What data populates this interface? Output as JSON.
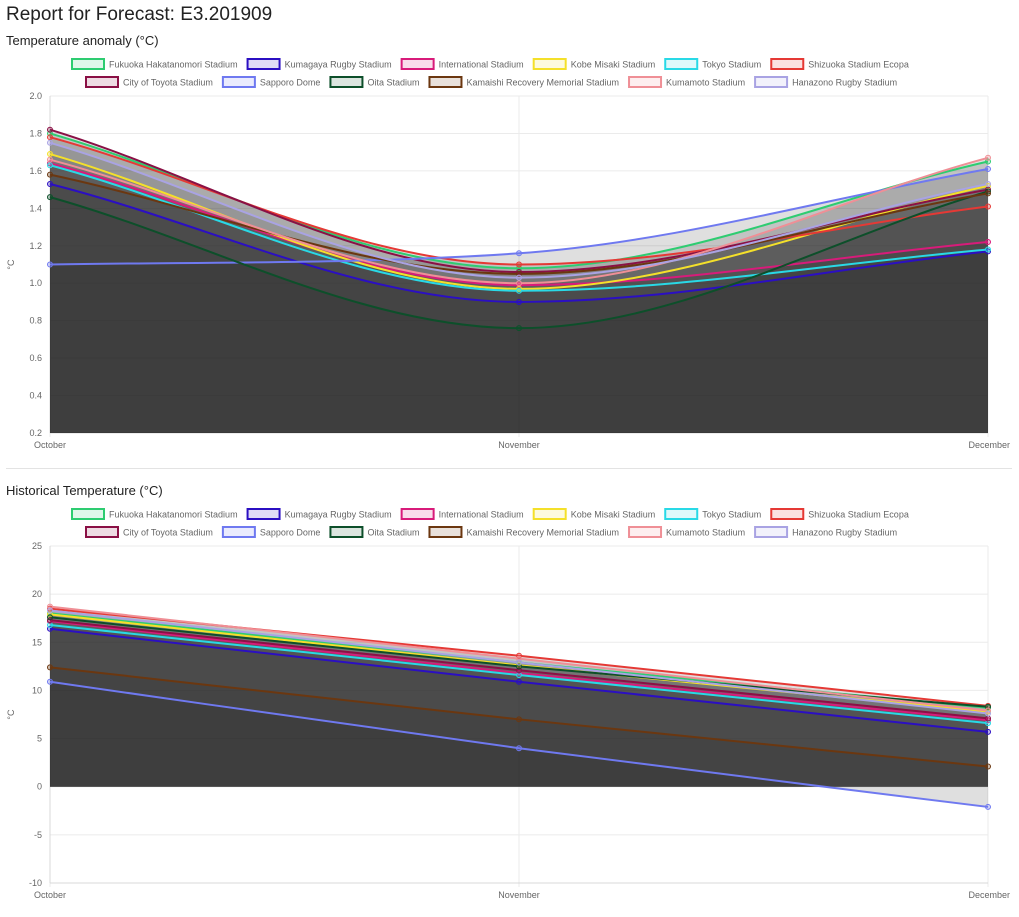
{
  "report": {
    "title": "Report for Forecast: E3.201909"
  },
  "colors": {
    "Fukuoka Hakatanomori Stadium": "#2ecc71",
    "Kumagaya Rugby Stadium": "#2b0fc2",
    "International Stadium": "#d81b7a",
    "Kobe Misaki Stadium": "#f4e02a",
    "Tokyo Stadium": "#29d9e6",
    "Shizuoka Stadium Ecopa": "#e53935",
    "City of Toyota Stadium": "#8a1045",
    "Sapporo Dome": "#6f79f0",
    "Oita Stadium": "#0d4f2a",
    "Kamaishi Recovery Memorial Stadium": "#6b3710",
    "Kumamoto Stadium": "#ef8f96",
    "Hanazono Rugby Stadium": "#a9a3e3"
  },
  "chart_data": [
    {
      "type": "area",
      "title": "Temperature anomaly (°C)",
      "xlabel": "",
      "ylabel": "°C",
      "categories": [
        "October",
        "November",
        "December"
      ],
      "ylim": [
        0.2,
        2.0
      ],
      "yticks": [
        "0.2",
        "0.4",
        "0.6",
        "0.8",
        "1.0",
        "1.2",
        "1.4",
        "1.6",
        "1.8",
        "2.0"
      ],
      "grid": true,
      "legend": "top",
      "series": [
        {
          "name": "Fukuoka Hakatanomori Stadium",
          "values": [
            1.8,
            1.08,
            1.65
          ]
        },
        {
          "name": "Kumagaya Rugby Stadium",
          "values": [
            1.53,
            0.9,
            1.17
          ]
        },
        {
          "name": "International Stadium",
          "values": [
            1.64,
            0.99,
            1.22
          ]
        },
        {
          "name": "Kobe Misaki Stadium",
          "values": [
            1.69,
            0.97,
            1.52
          ]
        },
        {
          "name": "Tokyo Stadium",
          "values": [
            1.63,
            0.96,
            1.18
          ]
        },
        {
          "name": "Shizuoka Stadium Ecopa",
          "values": [
            1.78,
            1.1,
            1.41
          ]
        },
        {
          "name": "City of Toyota Stadium",
          "values": [
            1.82,
            1.06,
            1.5
          ]
        },
        {
          "name": "Sapporo Dome",
          "values": [
            1.1,
            1.16,
            1.61
          ]
        },
        {
          "name": "Oita Stadium",
          "values": [
            1.46,
            0.76,
            1.49
          ]
        },
        {
          "name": "Kamaishi Recovery Memorial Stadium",
          "values": [
            1.58,
            1.05,
            1.48
          ]
        },
        {
          "name": "Kumamoto Stadium",
          "values": [
            1.66,
            1.0,
            1.67
          ]
        },
        {
          "name": "Hanazono Rugby Stadium",
          "values": [
            1.75,
            1.03,
            1.53
          ]
        }
      ]
    },
    {
      "type": "area",
      "title": "Historical Temperature (°C)",
      "xlabel": "",
      "ylabel": "°C",
      "categories": [
        "October",
        "November",
        "December"
      ],
      "ylim": [
        -10,
        25
      ],
      "yticks": [
        "-10",
        "-5",
        "0",
        "5",
        "10",
        "15",
        "20",
        "25"
      ],
      "grid": true,
      "legend": "top",
      "series": [
        {
          "name": "Fukuoka Hakatanomori Stadium",
          "values": [
            18.0,
            12.9,
            8.2
          ]
        },
        {
          "name": "Kumagaya Rugby Stadium",
          "values": [
            16.4,
            10.9,
            5.7
          ]
        },
        {
          "name": "International Stadium",
          "values": [
            17.2,
            11.8,
            6.9
          ]
        },
        {
          "name": "Kobe Misaki Stadium",
          "values": [
            17.9,
            12.6,
            7.8
          ]
        },
        {
          "name": "Tokyo Stadium",
          "values": [
            16.8,
            11.6,
            6.6
          ]
        },
        {
          "name": "Shizuoka Stadium Ecopa",
          "values": [
            18.5,
            13.6,
            8.4
          ]
        },
        {
          "name": "City of Toyota Stadium",
          "values": [
            17.3,
            12.1,
            7.1
          ]
        },
        {
          "name": "Sapporo Dome",
          "values": [
            10.9,
            4.0,
            -2.1
          ]
        },
        {
          "name": "Oita Stadium",
          "values": [
            17.6,
            12.5,
            8.3
          ]
        },
        {
          "name": "Kamaishi Recovery Memorial Stadium",
          "values": [
            12.4,
            7.0,
            2.1
          ]
        },
        {
          "name": "Kumamoto Stadium",
          "values": [
            18.7,
            13.3,
            7.9
          ]
        },
        {
          "name": "Hanazono Rugby Stadium",
          "values": [
            18.3,
            12.9,
            7.6
          ]
        }
      ]
    }
  ]
}
